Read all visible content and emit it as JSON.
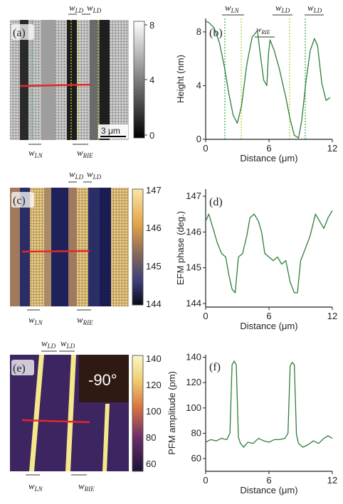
{
  "panels": {
    "a": {
      "label": "(a)",
      "scalebar": "3 μm",
      "colorbar_ticks": [
        "8",
        "4",
        "0"
      ],
      "colorbar_title": "Height (nm)",
      "top_annotations": [
        {
          "sym": "w",
          "sub": "LD"
        },
        {
          "sym": "w",
          "sub": "LD"
        }
      ],
      "bottom_annotations": [
        {
          "sym": "w",
          "sub": "LN"
        },
        {
          "sym": "w",
          "sub": "RIE"
        }
      ]
    },
    "b": {
      "label": "(b)",
      "top_annotations": [
        {
          "sym": "w",
          "sub": "LN"
        },
        {
          "sym": "w",
          "sub": "LD"
        },
        {
          "sym": "w",
          "sub": "LD"
        }
      ],
      "inner_annotation": {
        "sym": "w",
        "sub": "RIE"
      }
    },
    "c": {
      "label": "(c)",
      "colorbar_ticks": [
        "147",
        "146",
        "145",
        "144"
      ],
      "colorbar_title": "EFM phase (deg.)",
      "top_annotations": [
        {
          "sym": "w",
          "sub": "LD"
        },
        {
          "sym": "w",
          "sub": "LD"
        }
      ],
      "bottom_annotations": [
        {
          "sym": "w",
          "sub": "LN"
        },
        {
          "sym": "w",
          "sub": "RIE"
        }
      ]
    },
    "d": {
      "label": "(d)"
    },
    "e": {
      "label": "(e)",
      "angle": "-90°",
      "colorbar_ticks": [
        "140",
        "120",
        "100",
        "80",
        "60"
      ],
      "colorbar_title": "PFM amplitude (pm)",
      "top_annotations": [
        {
          "sym": "w",
          "sub": "LD"
        },
        {
          "sym": "w",
          "sub": "LD"
        }
      ],
      "bottom_annotations": [
        {
          "sym": "w",
          "sub": "LN"
        },
        {
          "sym": "w",
          "sub": "RIE"
        }
      ]
    },
    "f": {
      "label": "(f)"
    }
  },
  "chart_data": [
    {
      "type": "line",
      "panel": "b",
      "xlabel": "Distance (μm)",
      "ylabel": "Height (nm)",
      "xlim": [
        0,
        12
      ],
      "ylim": [
        0,
        9
      ],
      "xticks": [
        "0",
        "6",
        "12"
      ],
      "yticks": [
        "0",
        "4",
        "8"
      ],
      "line_color": "#2e7d3a",
      "x": [
        0,
        0.3,
        0.8,
        1.3,
        1.8,
        2.2,
        2.6,
        3.0,
        3.4,
        3.9,
        4.4,
        4.9,
        5.2,
        5.5,
        5.8,
        5.95,
        6.1,
        6.5,
        7.0,
        7.6,
        8.0,
        8.4,
        8.8,
        9.1,
        9.5,
        9.9,
        10.3,
        10.6,
        11.0,
        11.4,
        11.8
      ],
      "y": [
        8.8,
        8.7,
        8.3,
        7.2,
        5.3,
        3.4,
        1.8,
        1.2,
        2.5,
        5.6,
        7.6,
        8.1,
        6.2,
        4.4,
        4.0,
        6.4,
        7.4,
        6.6,
        5.2,
        3.1,
        1.5,
        0.3,
        0.1,
        1.4,
        4.3,
        6.6,
        7.5,
        7.0,
        4.2,
        2.9,
        3.1
      ]
    },
    {
      "type": "line",
      "panel": "d",
      "xlabel": "Distance (μm)",
      "ylabel": "EFM phase (deg.)",
      "xlim": [
        0,
        12
      ],
      "ylim": [
        143.9,
        147.2
      ],
      "xticks": [
        "0",
        "6",
        "12"
      ],
      "yticks": [
        "144",
        "145",
        "146",
        "147"
      ],
      "line_color": "#2e7d3a",
      "x": [
        0,
        0.3,
        0.7,
        1.1,
        1.5,
        1.9,
        2.2,
        2.5,
        2.8,
        3.1,
        3.5,
        3.9,
        4.2,
        4.6,
        5.0,
        5.3,
        5.6,
        6.0,
        6.4,
        6.8,
        7.2,
        7.6,
        8.0,
        8.4,
        8.7,
        9.0,
        9.4,
        9.9,
        10.4,
        10.8,
        11.2,
        11.6,
        12.0
      ],
      "y": [
        146.3,
        146.5,
        146.1,
        145.7,
        145.4,
        145.3,
        144.8,
        144.4,
        144.3,
        145.3,
        145.4,
        145.9,
        146.4,
        146.5,
        146.3,
        146.0,
        145.4,
        145.3,
        145.2,
        145.3,
        145.1,
        145.2,
        144.6,
        144.3,
        144.3,
        145.2,
        145.5,
        145.9,
        146.5,
        146.3,
        146.1,
        146.4,
        146.6
      ]
    },
    {
      "type": "line",
      "panel": "f",
      "xlabel": "Distance (μm)",
      "ylabel": "PFM amplitude (pm)",
      "xlim": [
        0,
        12
      ],
      "ylim": [
        50,
        142
      ],
      "xticks": [
        "0",
        "6",
        "12"
      ],
      "yticks": [
        "60",
        "80",
        "100",
        "120",
        "140"
      ],
      "line_color": "#2e7d3a",
      "x": [
        0,
        0.5,
        1.0,
        1.5,
        2.0,
        2.3,
        2.5,
        2.7,
        2.9,
        3.1,
        3.3,
        3.6,
        4.0,
        4.5,
        5.0,
        5.5,
        6.0,
        6.5,
        7.0,
        7.5,
        7.8,
        8.0,
        8.2,
        8.4,
        8.6,
        8.8,
        9.2,
        9.7,
        10.2,
        10.7,
        11.2,
        11.6,
        12.0
      ],
      "y": [
        73,
        75,
        74,
        76,
        75,
        80,
        134,
        137,
        134,
        77,
        72,
        69,
        73,
        72,
        76,
        74,
        73,
        75,
        75,
        76,
        80,
        133,
        136,
        134,
        79,
        72,
        69,
        71,
        74,
        72,
        76,
        78,
        76
      ]
    }
  ]
}
